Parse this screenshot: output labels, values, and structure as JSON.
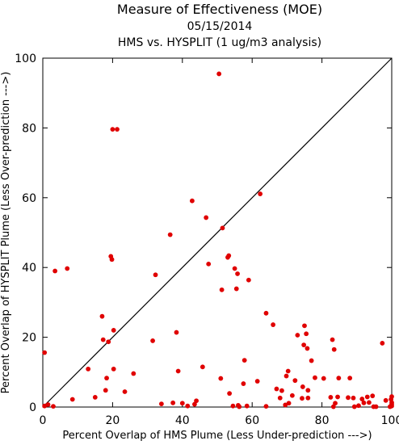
{
  "chart_data": {
    "type": "scatter",
    "title": "Measure of Effectiveness (MOE)",
    "subtitle_date": "05/15/2014",
    "subtitle": "HMS vs. HYSPLIT  (1 ug/m3 analysis)",
    "xlabel": "Percent Overlap of HMS Plume (Less Under-prediction --->)",
    "ylabel": "Percent Overlap of HYSPLIT Plume (Less Over-prediction --->)",
    "xlim": [
      0,
      100
    ],
    "ylim": [
      0,
      100
    ],
    "xticks": [
      0,
      20,
      40,
      60,
      80,
      100
    ],
    "yticks": [
      0,
      20,
      40,
      60,
      80,
      100
    ],
    "grid": false,
    "reference_line": {
      "from": [
        0,
        0
      ],
      "to": [
        100,
        100
      ]
    },
    "point_color": "#e00000",
    "series": [
      {
        "points": [
          [
            0.5,
            15.6
          ],
          [
            0.5,
            0.3
          ],
          [
            1.5,
            0.7
          ],
          [
            3,
            0.2
          ],
          [
            3.5,
            39
          ],
          [
            7,
            39.7
          ],
          [
            8.5,
            2.2
          ],
          [
            13,
            10.9
          ],
          [
            15,
            2.8
          ],
          [
            17,
            26
          ],
          [
            17.3,
            19.3
          ],
          [
            18,
            4.8
          ],
          [
            18.3,
            8.3
          ],
          [
            18.8,
            18.7
          ],
          [
            19.5,
            43.2
          ],
          [
            19.8,
            42.3
          ],
          [
            20,
            79.6
          ],
          [
            20.3,
            10.9
          ],
          [
            20.3,
            22
          ],
          [
            21.3,
            79.6
          ],
          [
            23.5,
            4.4
          ],
          [
            26,
            9.6
          ],
          [
            31.5,
            19
          ],
          [
            32.3,
            37.9
          ],
          [
            34,
            0.9
          ],
          [
            36.5,
            49.4
          ],
          [
            37.3,
            1.2
          ],
          [
            38.3,
            21.4
          ],
          [
            38.8,
            10.3
          ],
          [
            40,
            1.1
          ],
          [
            41.5,
            0.3
          ],
          [
            42.8,
            59.1
          ],
          [
            43.5,
            0.8
          ],
          [
            44,
            1.8
          ],
          [
            45.8,
            11.5
          ],
          [
            46.8,
            54.3
          ],
          [
            47.5,
            41
          ],
          [
            50.5,
            95.5
          ],
          [
            51,
            8.2
          ],
          [
            51.3,
            33.6
          ],
          [
            51.5,
            51.3
          ],
          [
            53,
            42.9
          ],
          [
            53.3,
            43.4
          ],
          [
            53.5,
            3.9
          ],
          [
            54.5,
            0.3
          ],
          [
            55,
            39.7
          ],
          [
            55.5,
            33.9
          ],
          [
            55.8,
            38.2
          ],
          [
            56,
            0.5
          ],
          [
            56.3,
            0.1
          ],
          [
            57.5,
            6.7
          ],
          [
            57.8,
            13.4
          ],
          [
            58.5,
            0.3
          ],
          [
            59,
            36.4
          ],
          [
            61.5,
            7.4
          ],
          [
            62.3,
            61.1
          ],
          [
            64,
            0.2
          ],
          [
            64,
            26.9
          ],
          [
            66,
            23.6
          ],
          [
            67,
            5.2
          ],
          [
            68,
            2.6
          ],
          [
            68.5,
            4.7
          ],
          [
            69.5,
            0.6
          ],
          [
            69.8,
            8.9
          ],
          [
            70.3,
            10.3
          ],
          [
            70.5,
            1.1
          ],
          [
            71.5,
            3.3
          ],
          [
            72.3,
            7.6
          ],
          [
            73,
            20.6
          ],
          [
            74.3,
            2.5
          ],
          [
            74.5,
            5.8
          ],
          [
            74.8,
            17.8
          ],
          [
            75,
            23.3
          ],
          [
            75.5,
            21
          ],
          [
            75.8,
            16.8
          ],
          [
            76,
            2.6
          ],
          [
            76,
            4.8
          ],
          [
            77,
            13.3
          ],
          [
            78,
            8.4
          ],
          [
            80.5,
            8.2
          ],
          [
            82.5,
            2.8
          ],
          [
            83,
            19.3
          ],
          [
            83.3,
            0.1
          ],
          [
            83.5,
            16.5
          ],
          [
            83.8,
            1.1
          ],
          [
            84.5,
            2.9
          ],
          [
            84.8,
            8.3
          ],
          [
            87.5,
            2.7
          ],
          [
            88,
            8.3
          ],
          [
            89,
            2.6
          ],
          [
            89.3,
            0.1
          ],
          [
            90.5,
            0.4
          ],
          [
            91.5,
            2.3
          ],
          [
            92,
            1.2
          ],
          [
            93,
            2.9
          ],
          [
            93.5,
            1.3
          ],
          [
            94.5,
            3.2
          ],
          [
            94.8,
            0.1
          ],
          [
            95.5,
            0.1
          ],
          [
            97.3,
            18.3
          ],
          [
            98.3,
            1.9
          ],
          [
            99.5,
            0.1
          ],
          [
            99.8,
            2.2
          ],
          [
            100,
            3
          ],
          [
            100,
            1.3
          ],
          [
            100,
            0.3
          ],
          [
            100,
            0.8
          ]
        ]
      }
    ]
  }
}
